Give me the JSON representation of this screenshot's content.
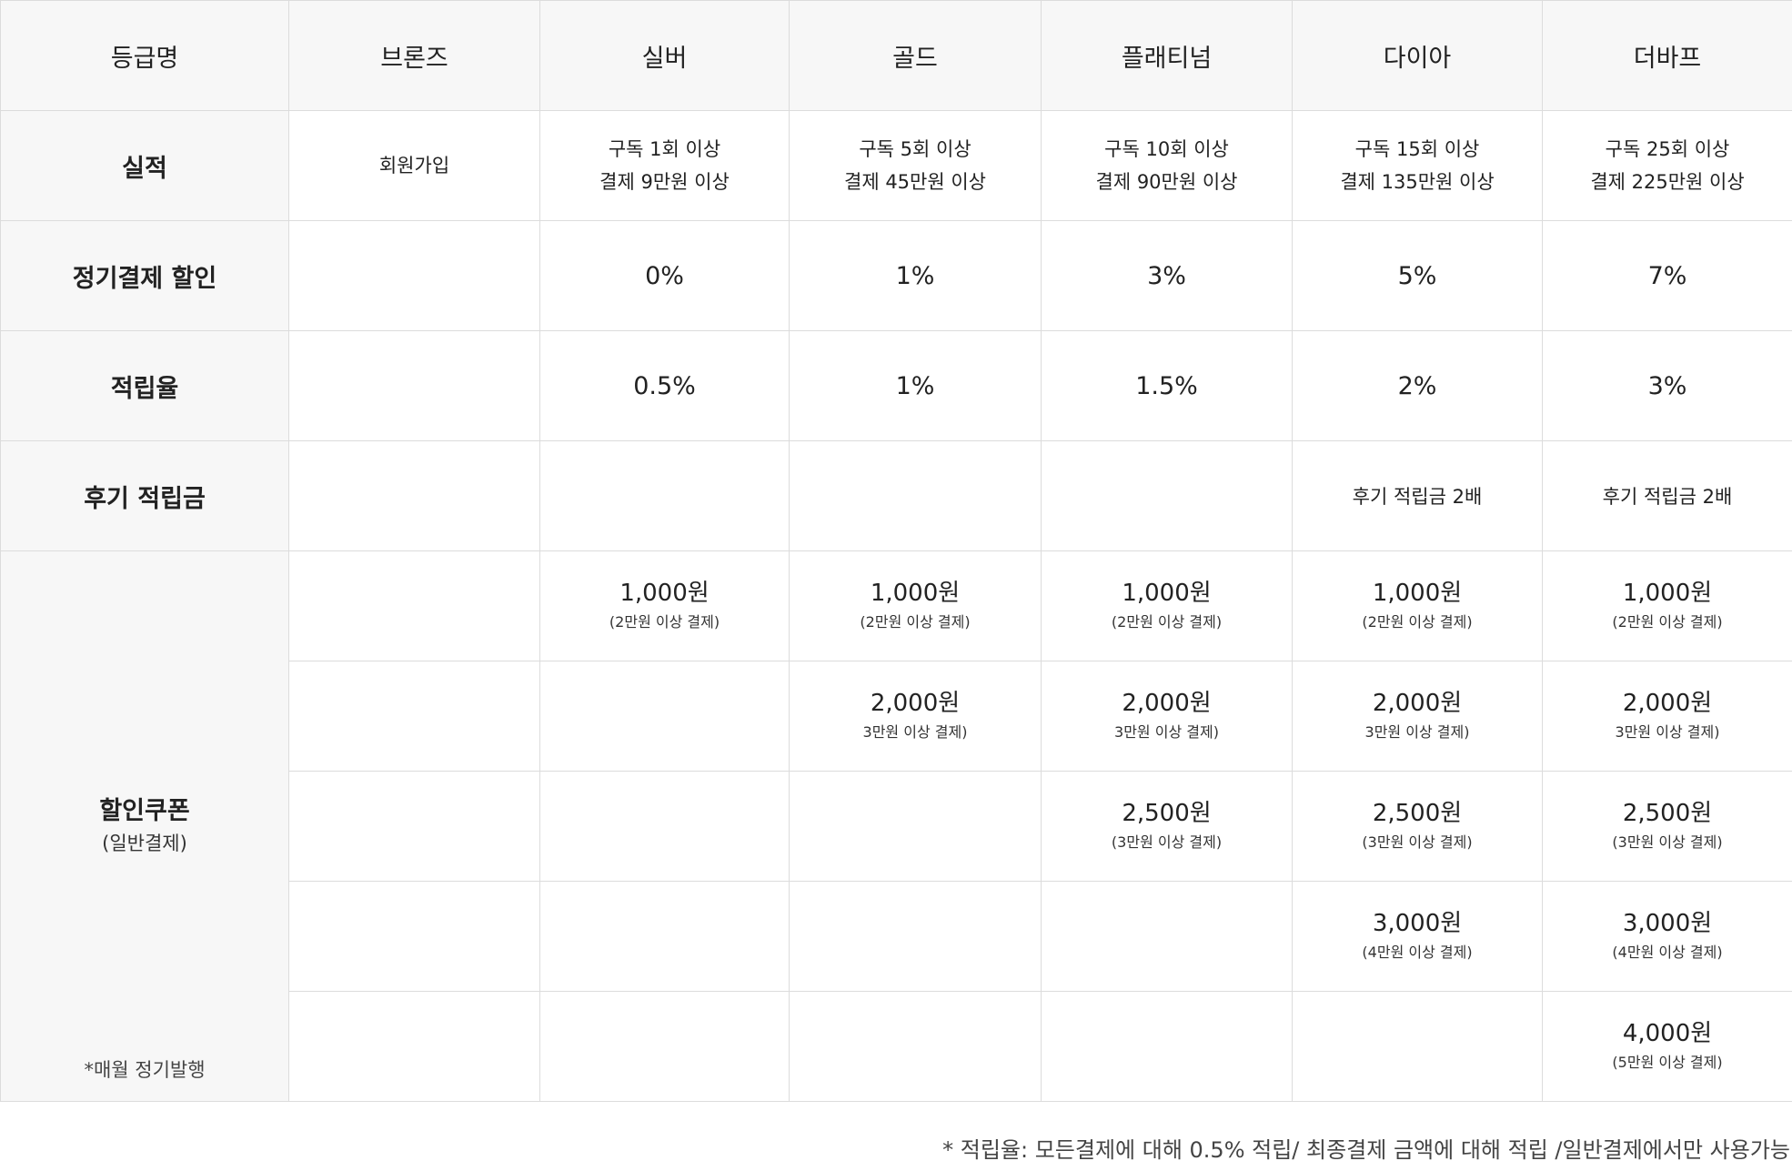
{
  "header": {
    "label": "등급명",
    "grades": [
      "브론즈",
      "실버",
      "골드",
      "플래티넘",
      "다이아",
      "더바프"
    ]
  },
  "performance": {
    "label": "실적",
    "cells": [
      {
        "line1": "회원가입",
        "line2": ""
      },
      {
        "line1": "구독 1회 이상",
        "line2": "결제 9만원 이상"
      },
      {
        "line1": "구독 5회 이상",
        "line2": "결제 45만원 이상"
      },
      {
        "line1": "구독 10회 이상",
        "line2": "결제 90만원 이상"
      },
      {
        "line1": "구독 15회 이상",
        "line2": "결제 135만원 이상"
      },
      {
        "line1": "구독 25회 이상",
        "line2": "결제 225만원 이상"
      }
    ]
  },
  "subscription_discount": {
    "label": "정기결제 할인",
    "values": [
      "",
      "0%",
      "1%",
      "3%",
      "5%",
      "7%"
    ]
  },
  "reward_rate": {
    "label": "적립율",
    "values": [
      "",
      "0.5%",
      "1%",
      "1.5%",
      "2%",
      "3%"
    ]
  },
  "review_reward": {
    "label": "후기 적립금",
    "values": [
      "",
      "",
      "",
      "",
      "후기 적립금 2배",
      "후기 적립금 2배"
    ]
  },
  "coupons": {
    "label": "할인쿠폰",
    "sublabel": "(일반결제)",
    "note": "*매월 정기발행",
    "rows": [
      [
        {
          "amount": "",
          "condition": ""
        },
        {
          "amount": "1,000원",
          "condition": "(2만원 이상 결제)"
        },
        {
          "amount": "1,000원",
          "condition": "(2만원 이상 결제)"
        },
        {
          "amount": "1,000원",
          "condition": "(2만원 이상 결제)"
        },
        {
          "amount": "1,000원",
          "condition": "(2만원 이상 결제)"
        },
        {
          "amount": "1,000원",
          "condition": "(2만원 이상 결제)"
        }
      ],
      [
        {
          "amount": "",
          "condition": ""
        },
        {
          "amount": "",
          "condition": ""
        },
        {
          "amount": "2,000원",
          "condition": "3만원 이상 결제)"
        },
        {
          "amount": "2,000원",
          "condition": "3만원 이상 결제)"
        },
        {
          "amount": "2,000원",
          "condition": "3만원 이상 결제)"
        },
        {
          "amount": "2,000원",
          "condition": "3만원 이상 결제)"
        }
      ],
      [
        {
          "amount": "",
          "condition": ""
        },
        {
          "amount": "",
          "condition": ""
        },
        {
          "amount": "",
          "condition": ""
        },
        {
          "amount": "2,500원",
          "condition": "(3만원 이상 결제)"
        },
        {
          "amount": "2,500원",
          "condition": "(3만원 이상 결제)"
        },
        {
          "amount": "2,500원",
          "condition": "(3만원 이상 결제)"
        }
      ],
      [
        {
          "amount": "",
          "condition": ""
        },
        {
          "amount": "",
          "condition": ""
        },
        {
          "amount": "",
          "condition": ""
        },
        {
          "amount": "",
          "condition": ""
        },
        {
          "amount": "3,000원",
          "condition": "(4만원 이상 결제)"
        },
        {
          "amount": "3,000원",
          "condition": "(4만원 이상 결제)"
        }
      ],
      [
        {
          "amount": "",
          "condition": ""
        },
        {
          "amount": "",
          "condition": ""
        },
        {
          "amount": "",
          "condition": ""
        },
        {
          "amount": "",
          "condition": ""
        },
        {
          "amount": "",
          "condition": ""
        },
        {
          "amount": "4,000원",
          "condition": "(5만원 이상 결제)"
        }
      ]
    ]
  },
  "footnote": "* 적립율:  모든결제에 대해 0.5% 적립/ 최종결제 금액에 대해 적립 /일반결제에서만 사용가능"
}
